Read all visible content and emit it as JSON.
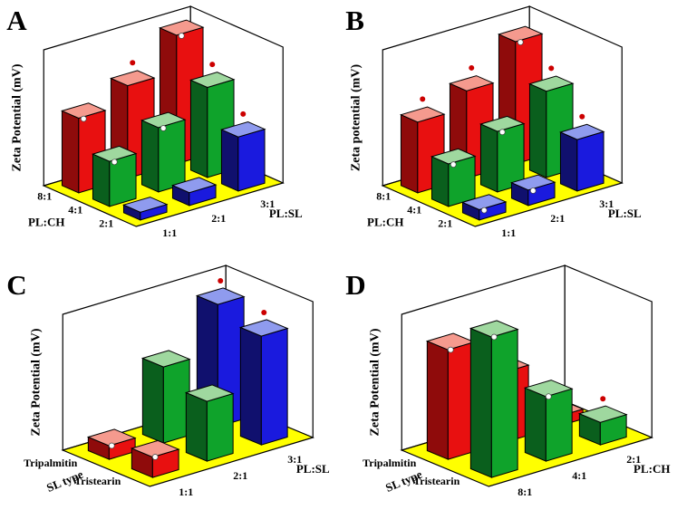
{
  "colors": {
    "floor": "#ffff00",
    "wall": "#ffffff",
    "marker_red": "#cc0000",
    "marker_white": "#ffffff",
    "red": {
      "face": "#e81010",
      "side": "#8f0b0b",
      "top": "#f59a8e"
    },
    "green": {
      "face": "#0fa32b",
      "side": "#0a5f1d",
      "top": "#9fd89f"
    },
    "blue": {
      "face": "#1a1ade",
      "side": "#10106e",
      "top": "#8f9bee"
    }
  },
  "chart_data": [
    {
      "type": "bar3d",
      "panel_label": "A",
      "z_axis_label": "Zeta Potential (mV)",
      "left_axis": {
        "title": "PL:CH",
        "categories_far_to_near": [
          "8:1",
          "4:1",
          "2:1"
        ]
      },
      "right_axis": {
        "title": "PL:SL",
        "categories_near_to_far": [
          "1:1",
          "2:1",
          "3:1"
        ]
      },
      "value_scale": {
        "min": 0,
        "max": 100,
        "note": "relative bar heights; no numeric ticks shown in figure"
      },
      "bars": [
        {
          "left": "8:1",
          "right": "1:1",
          "value": 58,
          "color": "red",
          "markers": [
            "white-dot"
          ]
        },
        {
          "left": "8:1",
          "right": "2:1",
          "value": 72,
          "color": "red",
          "markers": [
            "red-dot"
          ]
        },
        {
          "left": "8:1",
          "right": "3:1",
          "value": 100,
          "color": "red",
          "markers": [
            "white-dot"
          ]
        },
        {
          "left": "4:1",
          "right": "1:1",
          "value": 35,
          "color": "green",
          "markers": [
            "white-dot"
          ]
        },
        {
          "left": "4:1",
          "right": "2:1",
          "value": 50,
          "color": "green",
          "markers": [
            "white-dot"
          ]
        },
        {
          "left": "4:1",
          "right": "3:1",
          "value": 70,
          "color": "green",
          "markers": [
            "red-dot"
          ]
        },
        {
          "left": "2:1",
          "right": "1:1",
          "value": 6,
          "color": "blue",
          "markers": []
        },
        {
          "left": "2:1",
          "right": "2:1",
          "value": 10,
          "color": "blue",
          "markers": []
        },
        {
          "left": "2:1",
          "right": "3:1",
          "value": 42,
          "color": "blue",
          "markers": [
            "red-dot"
          ]
        }
      ]
    },
    {
      "type": "bar3d",
      "panel_label": "B",
      "z_axis_label": "Zeta potential (mV)",
      "left_axis": {
        "title": "PL:CH",
        "categories_far_to_near": [
          "8:1",
          "4:1",
          "2:1"
        ]
      },
      "right_axis": {
        "title": "PL:SL",
        "categories_near_to_far": [
          "1:1",
          "2:1",
          "3:1"
        ]
      },
      "value_scale": {
        "min": 0,
        "max": 100,
        "note": "relative bar heights; no numeric ticks shown in figure"
      },
      "bars": [
        {
          "left": "8:1",
          "right": "1:1",
          "value": 55,
          "color": "red",
          "markers": [
            "red-dot"
          ]
        },
        {
          "left": "8:1",
          "right": "2:1",
          "value": 68,
          "color": "red",
          "markers": [
            "red-dot"
          ]
        },
        {
          "left": "8:1",
          "right": "3:1",
          "value": 95,
          "color": "red",
          "markers": [
            "white-dot"
          ]
        },
        {
          "left": "4:1",
          "right": "1:1",
          "value": 33,
          "color": "green",
          "markers": [
            "white-dot"
          ]
        },
        {
          "left": "4:1",
          "right": "2:1",
          "value": 47,
          "color": "green",
          "markers": [
            "white-dot"
          ]
        },
        {
          "left": "4:1",
          "right": "3:1",
          "value": 67,
          "color": "green",
          "markers": [
            "red-dot"
          ]
        },
        {
          "left": "2:1",
          "right": "1:1",
          "value": 8,
          "color": "blue",
          "markers": [
            "white-dot"
          ]
        },
        {
          "left": "2:1",
          "right": "2:1",
          "value": 12,
          "color": "blue",
          "markers": [
            "white-dot"
          ]
        },
        {
          "left": "2:1",
          "right": "3:1",
          "value": 40,
          "color": "blue",
          "markers": [
            "red-dot"
          ]
        }
      ]
    },
    {
      "type": "bar3d",
      "panel_label": "C",
      "z_axis_label": "Zeta Potential (mV)",
      "left_axis": {
        "title": "SL type",
        "categories_far_to_near": [
          "Tripalmitin",
          "Tristearin"
        ]
      },
      "right_axis": {
        "title": "PL:SL",
        "categories_near_to_far": [
          "1:1",
          "2:1",
          "3:1"
        ]
      },
      "value_scale": {
        "min": 0,
        "max": 100,
        "note": "relative bar heights; no numeric ticks shown in figure"
      },
      "bars": [
        {
          "left": "Tripalmitin",
          "right": "1:1",
          "value": 10,
          "color": "red",
          "markers": [
            "white-dot"
          ]
        },
        {
          "left": "Tripalmitin",
          "right": "2:1",
          "value": 56,
          "color": "green",
          "markers": []
        },
        {
          "left": "Tripalmitin",
          "right": "3:1",
          "value": 90,
          "color": "blue",
          "markers": [
            "red-dot"
          ]
        },
        {
          "left": "Tristearin",
          "right": "1:1",
          "value": 15,
          "color": "red",
          "markers": [
            "white-dot"
          ]
        },
        {
          "left": "Tristearin",
          "right": "2:1",
          "value": 44,
          "color": "green",
          "markers": []
        },
        {
          "left": "Tristearin",
          "right": "3:1",
          "value": 80,
          "color": "blue",
          "markers": [
            "red-dot"
          ]
        }
      ]
    },
    {
      "type": "bar3d",
      "panel_label": "D",
      "z_axis_label": "Zeta Potential (mV)",
      "left_axis": {
        "title": "SL type",
        "categories_far_to_near": [
          "Tripalmitin",
          "Tristearin"
        ]
      },
      "right_axis": {
        "title": "PL:CH",
        "categories_near_to_far": [
          "8:1",
          "4:1",
          "2:1"
        ]
      },
      "value_scale": {
        "min": 0,
        "max": 100,
        "note": "relative bar heights; no numeric ticks shown in figure"
      },
      "bars": [
        {
          "left": "Tripalmitin",
          "right": "8:1",
          "value": 78,
          "color": "red",
          "markers": [
            "white-dot"
          ]
        },
        {
          "left": "Tripalmitin",
          "right": "4:1",
          "value": 50,
          "color": "red",
          "markers": [
            "white-dot"
          ]
        },
        {
          "left": "Tripalmitin",
          "right": "2:1",
          "value": 7,
          "color": "red",
          "markers": [
            "red-dot"
          ]
        },
        {
          "left": "Tristearin",
          "right": "8:1",
          "value": 100,
          "color": "green",
          "markers": [
            "white-dot"
          ]
        },
        {
          "left": "Tristearin",
          "right": "4:1",
          "value": 46,
          "color": "green",
          "markers": [
            "white-dot"
          ]
        },
        {
          "left": "Tristearin",
          "right": "2:1",
          "value": 16,
          "color": "green",
          "markers": [
            "red-dot"
          ]
        }
      ]
    }
  ]
}
